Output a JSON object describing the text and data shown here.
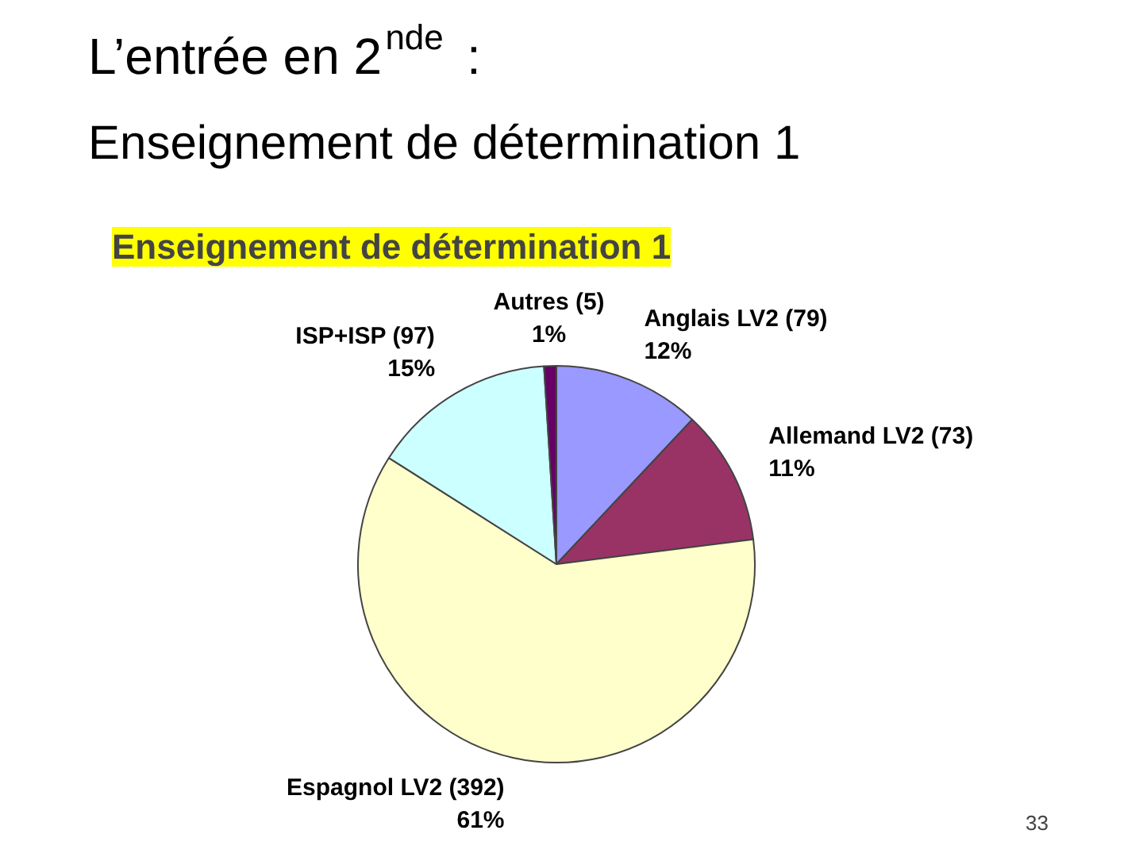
{
  "chart_data": {
    "type": "pie",
    "title": "L’entrée en 2$^{nde}$ :",
    "subtitle": "Enseignement de détermination 1",
    "categories": [
      "Anglais LV2 (79)",
      "Allemand LV2 (73)",
      "Espagnol LV2 (392)",
      "ISP+ISP (97)",
      "Autres (5)"
    ],
    "values": [
      12,
      11,
      61,
      15,
      1
    ],
    "colors": [
      "#9999ff",
      "#993366",
      "#ffffcc",
      "#ccffff",
      "#660066"
    ],
    "value_labels": [
      "12%",
      "11%",
      "61%",
      "15%",
      "1%"
    ],
    "annotations": [
      "Enseignement de détermination 1",
      "33"
    ]
  }
}
